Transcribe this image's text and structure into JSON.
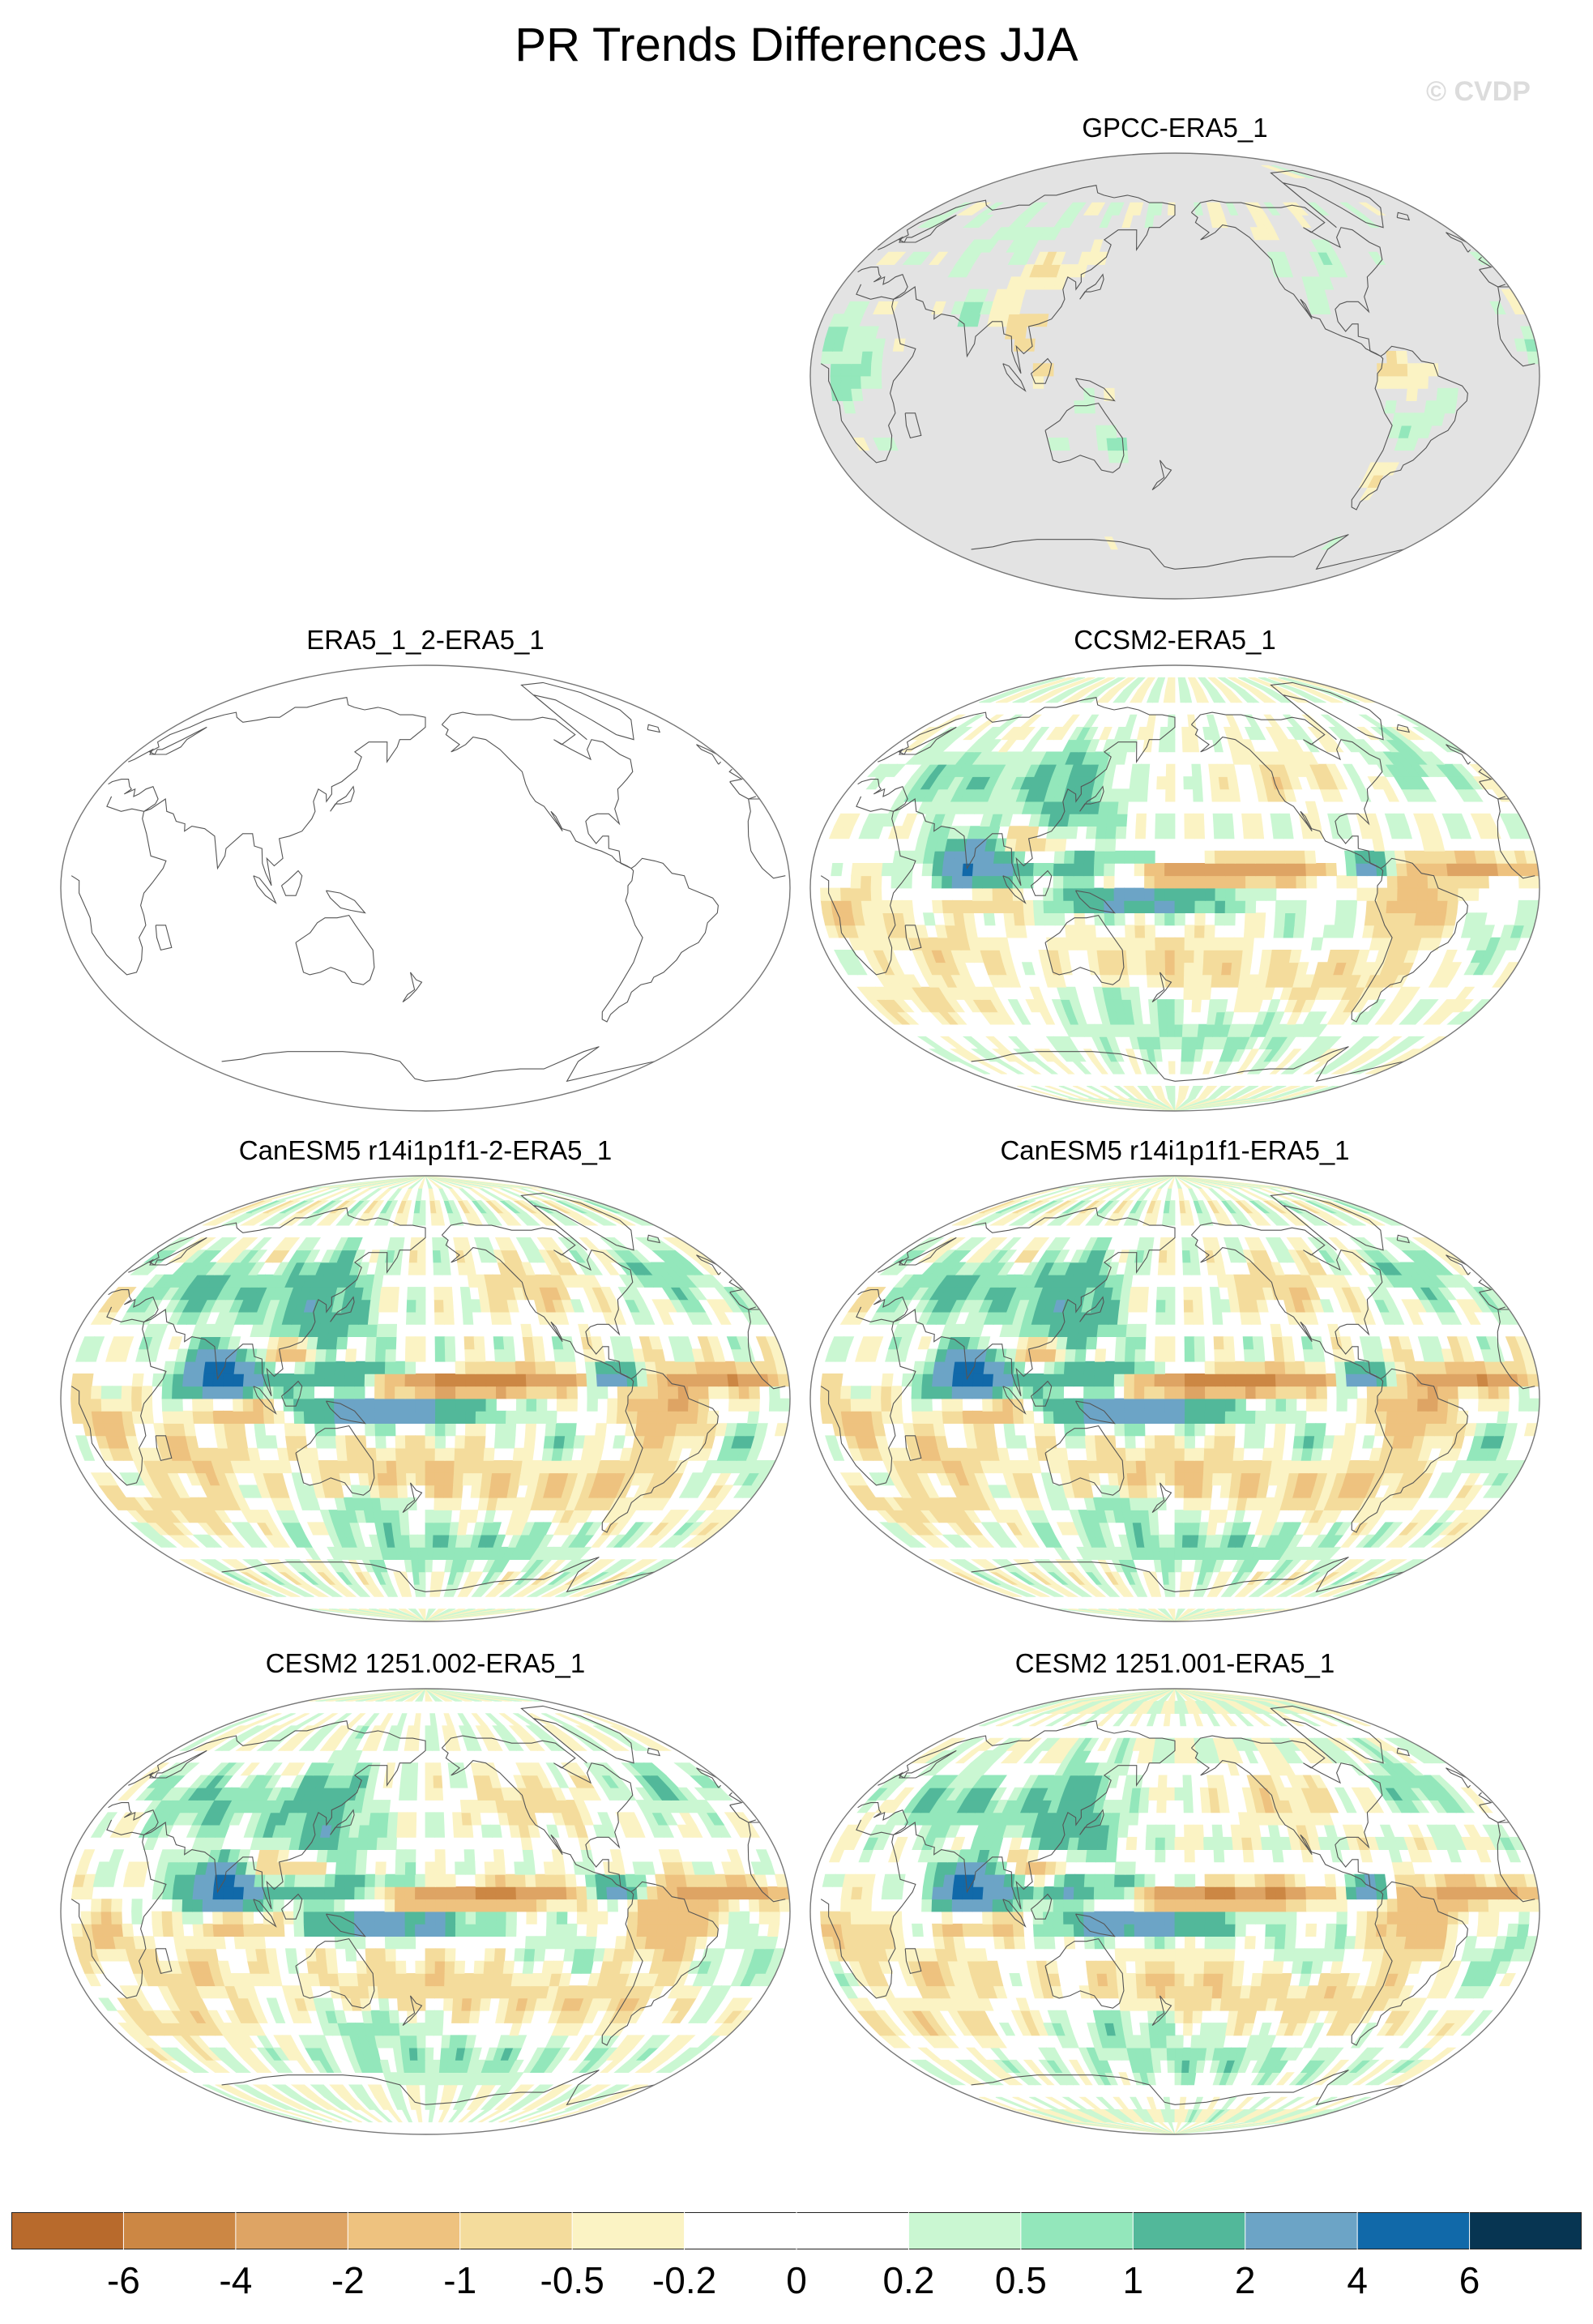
{
  "title": "PR Trends Differences JJA",
  "watermark": "© CVDP",
  "panels": [
    {
      "title": "GPCC-ERA5_1",
      "style": "obs",
      "scale": 0.55,
      "seed": 11
    },
    {
      "title": "ERA5_1_2-ERA5_1",
      "style": "empty",
      "scale": 0,
      "seed": 3
    },
    {
      "title": "CCSM2-ERA5_1",
      "style": "model",
      "scale": 0.85,
      "seed": 21
    },
    {
      "title": "CanESM5 r14i1p1f1-2-ERA5_1",
      "style": "model",
      "scale": 1.15,
      "seed": 31
    },
    {
      "title": "CanESM5 r14i1p1f1-ERA5_1",
      "style": "model",
      "scale": 1.15,
      "seed": 31
    },
    {
      "title": "CESM2 1251.002-ERA5_1",
      "style": "model",
      "scale": 1.0,
      "seed": 41
    },
    {
      "title": "CESM2 1251.001-ERA5_1",
      "style": "model",
      "scale": 1.0,
      "seed": 47
    }
  ],
  "colorbar": {
    "labels": [
      "-6",
      "-4",
      "-2",
      "-1",
      "-0.5",
      "-0.2",
      "0",
      "0.2",
      "0.5",
      "1",
      "2",
      "4",
      "6"
    ],
    "colors": [
      "#b86a2c",
      "#cc8744",
      "#dea464",
      "#eec27f",
      "#f4dc9c",
      "#fbf3c4",
      "#ffffff",
      "#ffffff",
      "#caf7d2",
      "#93e7bb",
      "#52b89a",
      "#6ca4c6",
      "#1169a9",
      "#073552"
    ],
    "land_missing_color": "#e3e3e3"
  }
}
